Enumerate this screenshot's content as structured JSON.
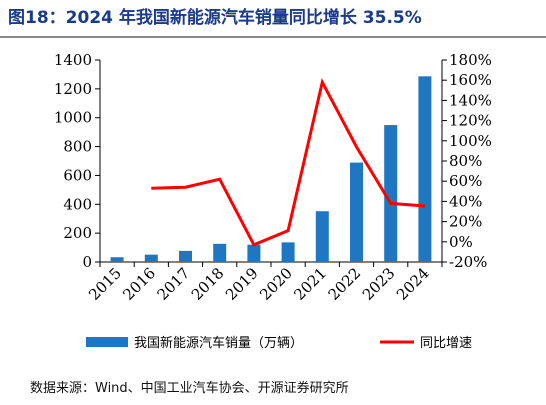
{
  "title": "图18：2024 年我国新能源汽车销量同比增长 35.5%",
  "source": "数据来源：Wind、中国工业汽车协会、开源证券研究所",
  "colors": {
    "bar": "#1f77c4",
    "line": "#ff0000",
    "title": "#1a3a8c"
  },
  "chart_data": {
    "type": "bar+line",
    "categories": [
      "2015",
      "2016",
      "2017",
      "2018",
      "2019",
      "2020",
      "2021",
      "2022",
      "2023",
      "2024"
    ],
    "series": [
      {
        "name": "我国新能源汽车销量（万辆）",
        "type": "bar",
        "axis": "left",
        "values": [
          33,
          51,
          77,
          126,
          120,
          136,
          352,
          689,
          949,
          1287
        ]
      },
      {
        "name": "同比增速",
        "type": "line",
        "axis": "right",
        "values": [
          null,
          53,
          54,
          62,
          -3,
          11,
          158,
          94,
          38,
          35.5
        ]
      }
    ],
    "y_left": {
      "min": 0,
      "max": 1400,
      "step": 200,
      "ticks": [
        "0",
        "200",
        "400",
        "600",
        "800",
        "1000",
        "1200",
        "1400"
      ]
    },
    "y_right": {
      "min": -20,
      "max": 180,
      "step": 20,
      "ticks": [
        "-20%",
        "0%",
        "20%",
        "40%",
        "60%",
        "80%",
        "100%",
        "120%",
        "140%",
        "160%",
        "180%"
      ]
    },
    "legend_position": "bottom",
    "grid": false
  }
}
